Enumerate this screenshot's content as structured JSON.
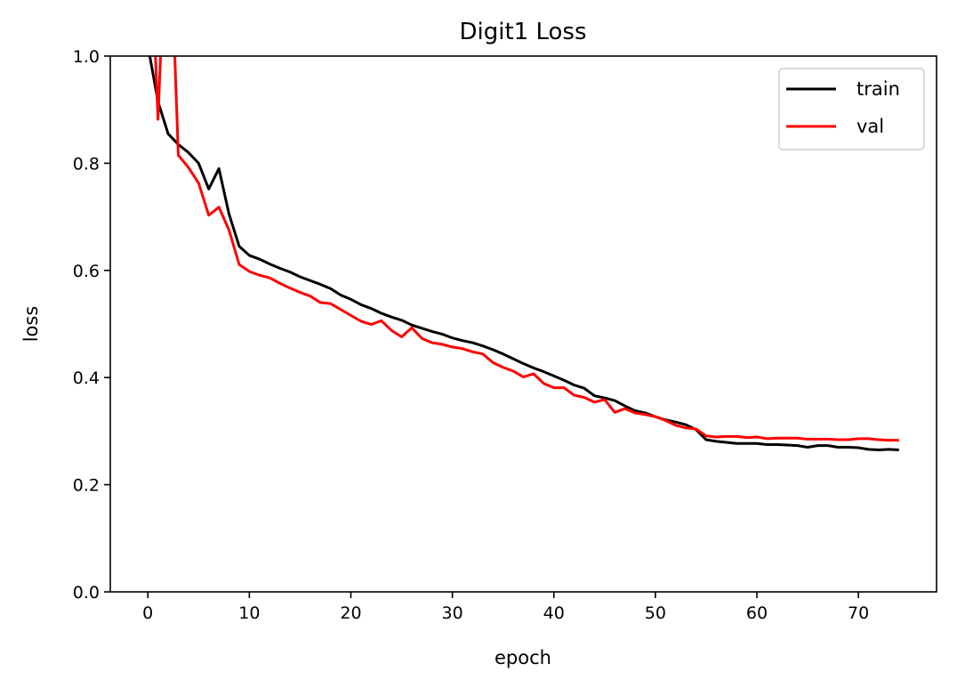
{
  "chart_data": {
    "type": "line",
    "title": "Digit1 Loss",
    "xlabel": "epoch",
    "ylabel": "loss",
    "xlim": [
      -3.7,
      77.7
    ],
    "ylim": [
      0,
      1.0
    ],
    "xticks": [
      0,
      10,
      20,
      30,
      40,
      50,
      60,
      70
    ],
    "yticks": [
      0.0,
      0.2,
      0.4,
      0.6,
      0.8,
      1.0
    ],
    "ytick_labels": [
      "0.0",
      "0.2",
      "0.4",
      "0.6",
      "0.8",
      "1.0"
    ],
    "grid": false,
    "legend": {
      "position": "top-right",
      "entries": [
        "train",
        "val"
      ]
    },
    "x": [
      0,
      1,
      2,
      3,
      4,
      5,
      6,
      7,
      8,
      9,
      10,
      11,
      12,
      13,
      14,
      15,
      16,
      17,
      18,
      19,
      20,
      21,
      22,
      23,
      24,
      25,
      26,
      27,
      28,
      29,
      30,
      31,
      32,
      33,
      34,
      35,
      36,
      37,
      38,
      39,
      40,
      41,
      42,
      43,
      44,
      45,
      46,
      47,
      48,
      49,
      50,
      51,
      52,
      53,
      54,
      55,
      56,
      57,
      58,
      59,
      60,
      61,
      62,
      63,
      64,
      65,
      66,
      67,
      68,
      69,
      70,
      71,
      72,
      73,
      74
    ],
    "series": [
      {
        "name": "train",
        "color": "#000000",
        "values": [
          1.02,
          0.915,
          0.855,
          0.835,
          0.82,
          0.8,
          0.752,
          0.79,
          0.705,
          0.645,
          0.628,
          0.621,
          0.612,
          0.604,
          0.597,
          0.588,
          0.581,
          0.574,
          0.566,
          0.554,
          0.546,
          0.536,
          0.529,
          0.52,
          0.513,
          0.507,
          0.498,
          0.492,
          0.486,
          0.481,
          0.474,
          0.469,
          0.465,
          0.459,
          0.452,
          0.444,
          0.435,
          0.426,
          0.418,
          0.411,
          0.403,
          0.395,
          0.386,
          0.38,
          0.366,
          0.362,
          0.357,
          0.347,
          0.338,
          0.334,
          0.327,
          0.321,
          0.317,
          0.312,
          0.303,
          0.284,
          0.281,
          0.279,
          0.277,
          0.277,
          0.277,
          0.275,
          0.275,
          0.274,
          0.273,
          0.27,
          0.273,
          0.273,
          0.27,
          0.27,
          0.269,
          0.266,
          0.265,
          0.266,
          0.265
        ]
      },
      {
        "name": "val",
        "color": "#ff0000",
        "values": [
          1.35,
          0.882,
          1.35,
          0.815,
          0.792,
          0.763,
          0.703,
          0.718,
          0.675,
          0.611,
          0.598,
          0.591,
          0.586,
          0.576,
          0.567,
          0.559,
          0.552,
          0.54,
          0.538,
          0.527,
          0.516,
          0.505,
          0.499,
          0.506,
          0.488,
          0.476,
          0.493,
          0.473,
          0.465,
          0.462,
          0.457,
          0.454,
          0.448,
          0.444,
          0.428,
          0.419,
          0.412,
          0.401,
          0.407,
          0.389,
          0.381,
          0.381,
          0.367,
          0.363,
          0.354,
          0.359,
          0.335,
          0.342,
          0.334,
          0.331,
          0.327,
          0.32,
          0.311,
          0.306,
          0.304,
          0.291,
          0.289,
          0.29,
          0.29,
          0.288,
          0.289,
          0.286,
          0.287,
          0.287,
          0.287,
          0.285,
          0.285,
          0.285,
          0.284,
          0.284,
          0.286,
          0.286,
          0.284,
          0.283,
          0.283
        ]
      }
    ]
  }
}
